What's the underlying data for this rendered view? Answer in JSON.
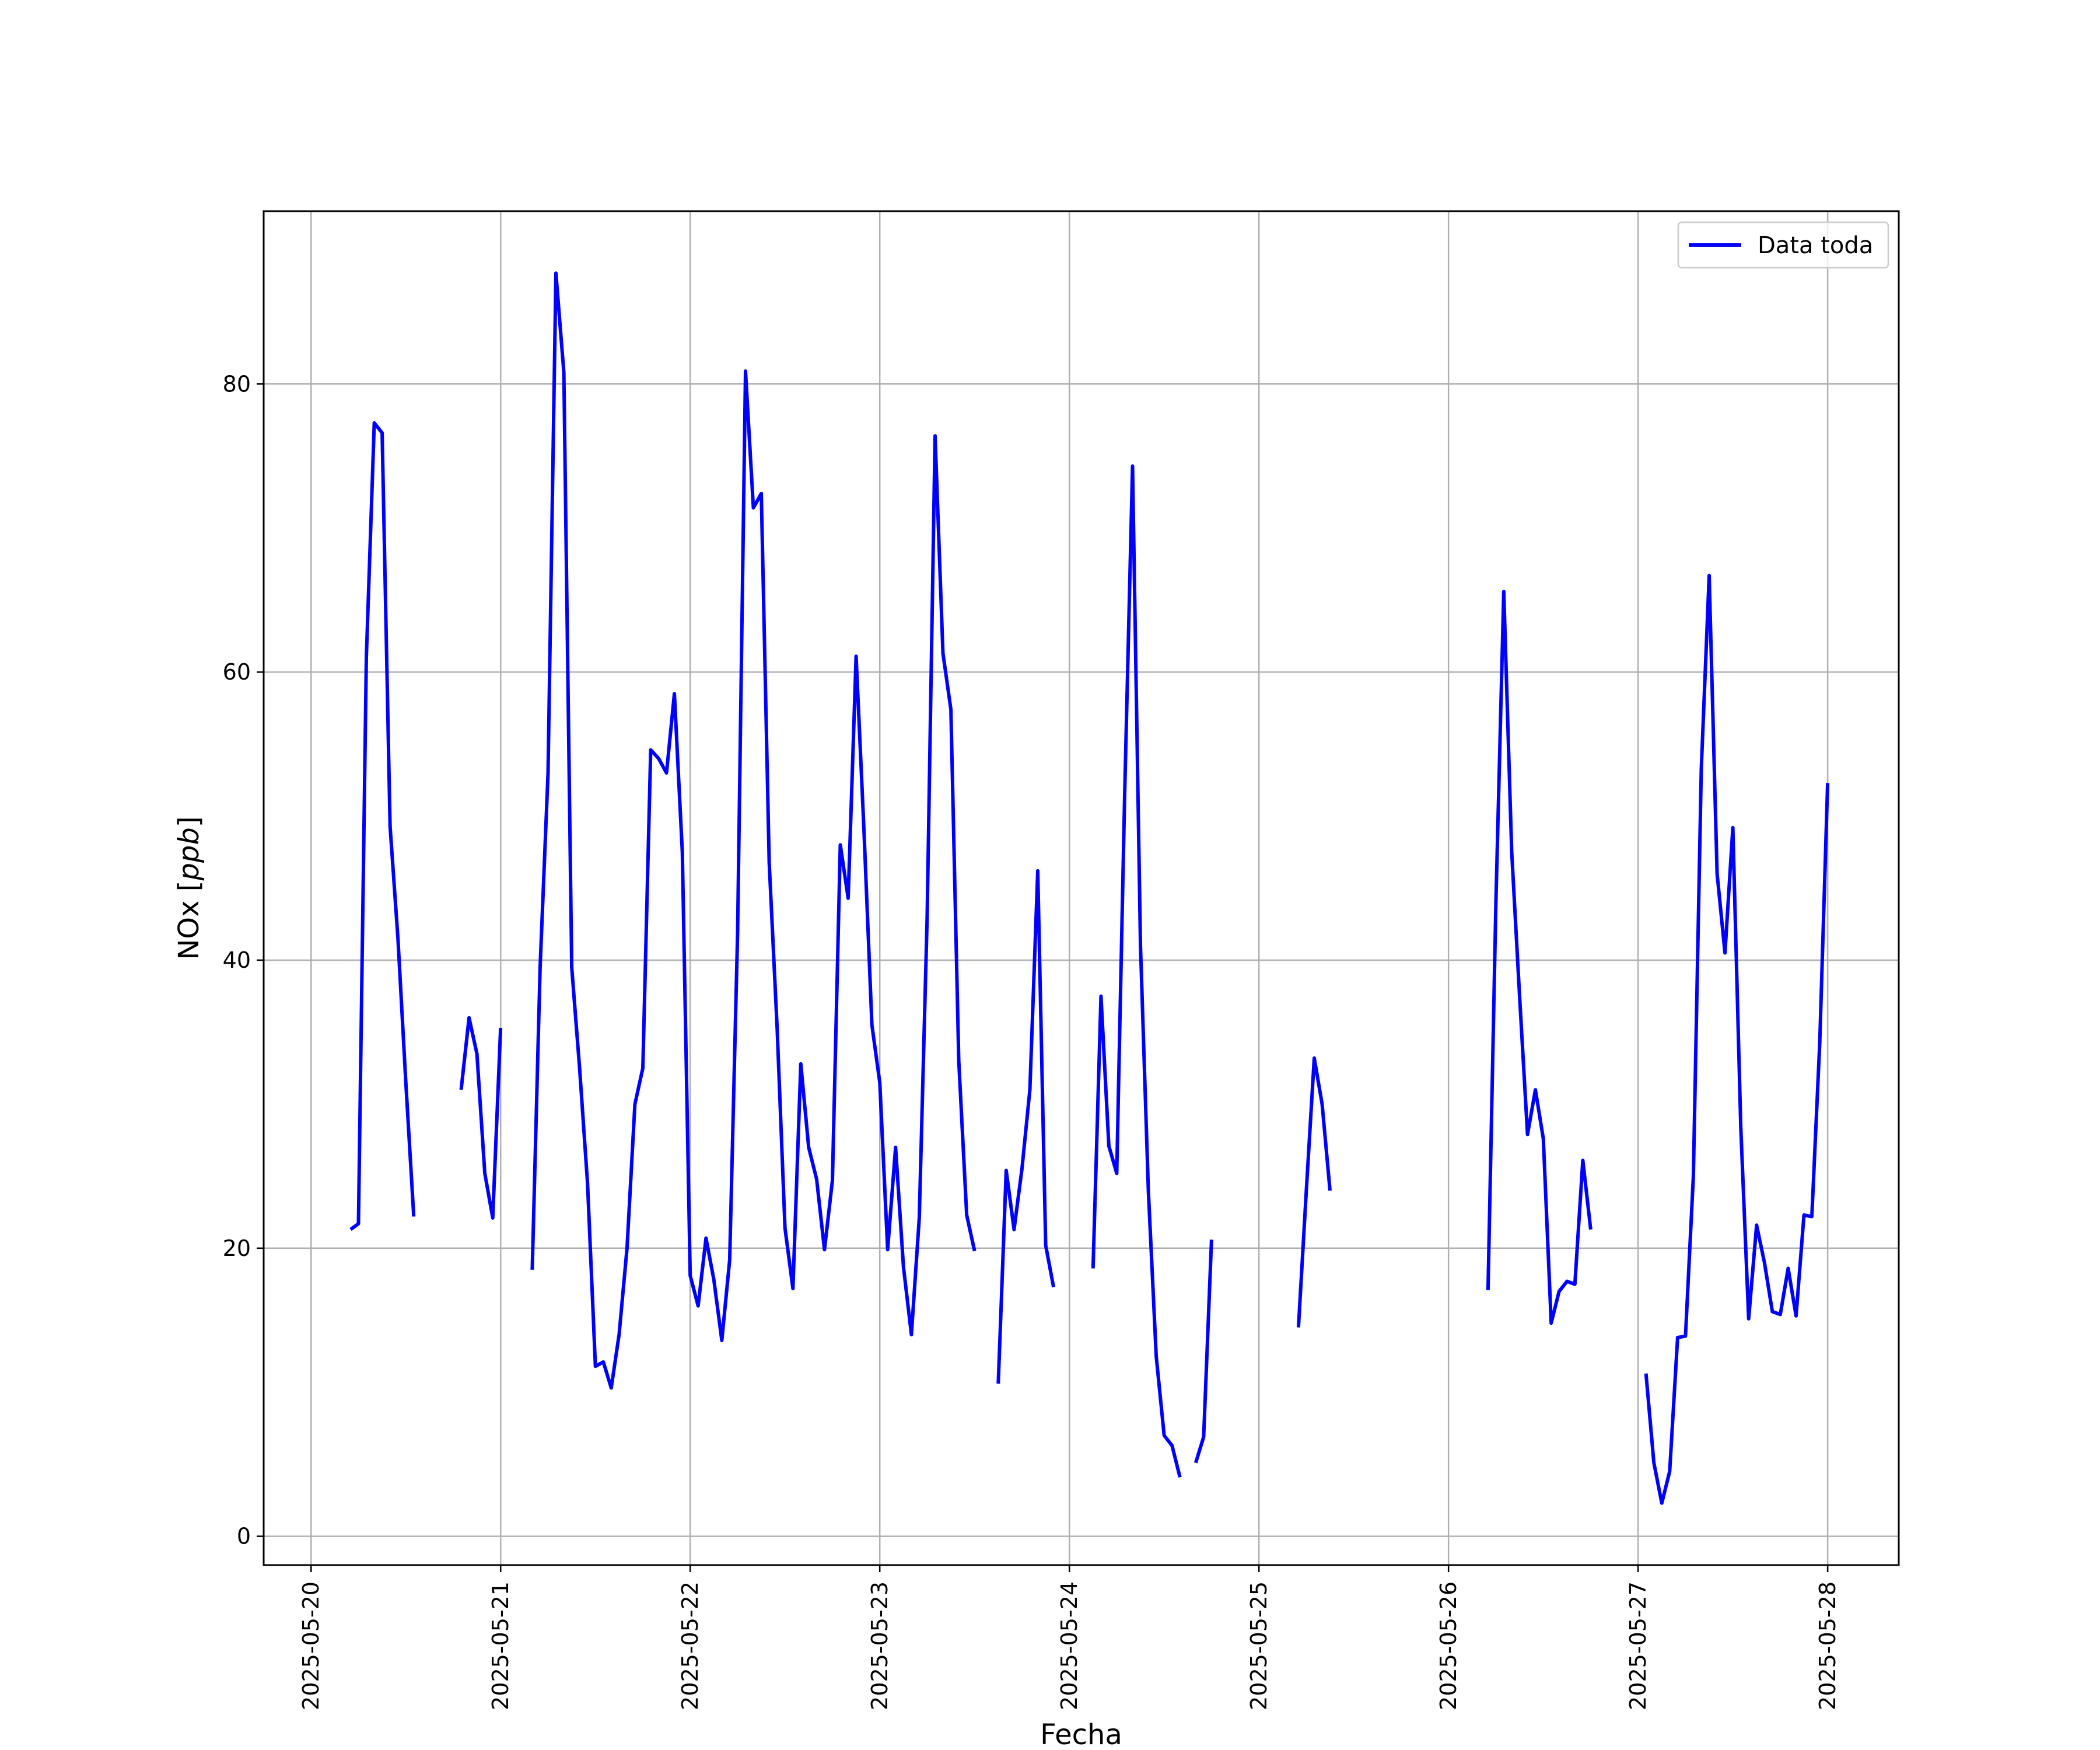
{
  "chart_data": {
    "type": "line",
    "xlabel": "Fecha",
    "ylabel_prefix": "NOx [",
    "ylabel_unit": "ppb",
    "ylabel_suffix": "]",
    "grid": true,
    "legend_position": "top-right",
    "x_range": [
      "2025-05-19T18:00",
      "2025-05-28T09:00"
    ],
    "ylim": [
      -2,
      92
    ],
    "x_ticks": [
      "2025-05-20",
      "2025-05-21",
      "2025-05-22",
      "2025-05-23",
      "2025-05-24",
      "2025-05-25",
      "2025-05-26",
      "2025-05-27",
      "2025-05-28"
    ],
    "y_ticks": [
      0,
      20,
      40,
      60,
      80
    ],
    "series": [
      {
        "name": "Data toda",
        "color": "#0000ff",
        "segments": [
          [
            [
              "2025-05-20T05:00",
              21.3
            ],
            [
              "2025-05-20T06:00",
              21.7
            ],
            [
              "2025-05-20T07:00",
              61.0
            ],
            [
              "2025-05-20T08:00",
              77.3
            ],
            [
              "2025-05-20T09:00",
              76.6
            ],
            [
              "2025-05-20T10:00",
              49.3
            ],
            [
              "2025-05-20T11:00",
              41.5
            ],
            [
              "2025-05-20T12:00",
              31.5
            ],
            [
              "2025-05-20T13:00",
              22.2
            ]
          ],
          [
            [
              "2025-05-20T19:00",
              31.0
            ],
            [
              "2025-05-20T20:00",
              36.0
            ],
            [
              "2025-05-20T21:00",
              33.5
            ],
            [
              "2025-05-20T22:00",
              25.2
            ],
            [
              "2025-05-20T23:00",
              22.1
            ],
            [
              "2025-05-21T00:00",
              35.3
            ]
          ],
          [
            [
              "2025-05-21T04:00",
              18.5
            ],
            [
              "2025-05-21T05:00",
              39.5
            ],
            [
              "2025-05-21T06:00",
              53.0
            ],
            [
              "2025-05-21T07:00",
              87.7
            ],
            [
              "2025-05-21T08:00",
              80.8
            ],
            [
              "2025-05-21T09:00",
              39.5
            ],
            [
              "2025-05-21T10:00",
              32.5
            ],
            [
              "2025-05-21T11:00",
              24.5
            ],
            [
              "2025-05-21T12:00",
              11.8
            ],
            [
              "2025-05-21T13:00",
              12.1
            ],
            [
              "2025-05-21T14:00",
              10.3
            ],
            [
              "2025-05-21T15:00",
              14.0
            ],
            [
              "2025-05-21T16:00",
              20.0
            ],
            [
              "2025-05-21T17:00",
              30.0
            ],
            [
              "2025-05-21T18:00",
              32.5
            ],
            [
              "2025-05-21T19:00",
              54.6
            ],
            [
              "2025-05-21T20:00",
              54.0
            ],
            [
              "2025-05-21T21:00",
              53.0
            ],
            [
              "2025-05-21T22:00",
              58.5
            ],
            [
              "2025-05-21T23:00",
              47.5
            ],
            [
              "2025-05-22T00:00",
              18.1
            ],
            [
              "2025-05-22T01:00",
              16.0
            ],
            [
              "2025-05-22T02:00",
              20.7
            ],
            [
              "2025-05-22T03:00",
              17.8
            ],
            [
              "2025-05-22T04:00",
              13.6
            ],
            [
              "2025-05-22T05:00",
              19.2
            ],
            [
              "2025-05-22T06:00",
              42.0
            ],
            [
              "2025-05-22T07:00",
              80.9
            ],
            [
              "2025-05-22T08:00",
              71.4
            ],
            [
              "2025-05-22T09:00",
              72.4
            ],
            [
              "2025-05-22T10:00",
              46.8
            ],
            [
              "2025-05-22T11:00",
              35.3
            ],
            [
              "2025-05-22T12:00",
              21.4
            ],
            [
              "2025-05-22T13:00",
              17.2
            ],
            [
              "2025-05-22T14:00",
              32.8
            ],
            [
              "2025-05-22T15:00",
              27.0
            ],
            [
              "2025-05-22T16:00",
              24.8
            ],
            [
              "2025-05-22T17:00",
              19.9
            ],
            [
              "2025-05-22T18:00",
              24.7
            ],
            [
              "2025-05-22T19:00",
              48.0
            ],
            [
              "2025-05-22T20:00",
              44.3
            ],
            [
              "2025-05-22T21:00",
              61.1
            ],
            [
              "2025-05-22T22:00",
              49.0
            ],
            [
              "2025-05-22T23:00",
              35.5
            ],
            [
              "2025-05-23T00:00",
              31.5
            ],
            [
              "2025-05-23T01:00",
              19.9
            ],
            [
              "2025-05-23T02:00",
              27.0
            ],
            [
              "2025-05-23T03:00",
              18.7
            ],
            [
              "2025-05-23T04:00",
              14.0
            ],
            [
              "2025-05-23T05:00",
              22.1
            ],
            [
              "2025-05-23T06:00",
              43.0
            ],
            [
              "2025-05-23T07:00",
              76.4
            ],
            [
              "2025-05-23T08:00",
              61.3
            ],
            [
              "2025-05-23T09:00",
              57.4
            ],
            [
              "2025-05-23T10:00",
              33.0
            ],
            [
              "2025-05-23T11:00",
              22.3
            ],
            [
              "2025-05-23T12:00",
              19.8
            ]
          ],
          [
            [
              "2025-05-23T15:00",
              10.6
            ],
            [
              "2025-05-23T16:00",
              25.4
            ],
            [
              "2025-05-23T17:00",
              21.3
            ],
            [
              "2025-05-23T18:00",
              25.5
            ],
            [
              "2025-05-23T19:00",
              31.0
            ],
            [
              "2025-05-23T20:00",
              46.2
            ],
            [
              "2025-05-23T21:00",
              20.2
            ],
            [
              "2025-05-23T22:00",
              17.3
            ]
          ],
          [
            [
              "2025-05-24T03:00",
              18.6
            ],
            [
              "2025-05-24T04:00",
              37.5
            ],
            [
              "2025-05-24T05:00",
              27.1
            ],
            [
              "2025-05-24T06:00",
              25.2
            ],
            [
              "2025-05-24T07:00",
              51.5
            ],
            [
              "2025-05-24T08:00",
              74.3
            ],
            [
              "2025-05-24T09:00",
              41.0
            ],
            [
              "2025-05-24T10:00",
              24.0
            ],
            [
              "2025-05-24T11:00",
              12.5
            ],
            [
              "2025-05-24T12:00",
              7.0
            ],
            [
              "2025-05-24T13:00",
              6.3
            ],
            [
              "2025-05-24T14:00",
              4.1
            ]
          ],
          [
            [
              "2025-05-24T16:00",
              5.1
            ],
            [
              "2025-05-24T17:00",
              6.9
            ],
            [
              "2025-05-24T18:00",
              20.6
            ]
          ],
          [
            [
              "2025-05-25T05:00",
              14.5
            ],
            [
              "2025-05-25T06:00",
              24.0
            ],
            [
              "2025-05-25T07:00",
              33.2
            ],
            [
              "2025-05-25T08:00",
              30.0
            ],
            [
              "2025-05-25T09:00",
              24.0
            ]
          ],
          [
            [
              "2025-05-26T05:00",
              17.1
            ],
            [
              "2025-05-26T06:00",
              44.0
            ],
            [
              "2025-05-26T07:00",
              65.6
            ],
            [
              "2025-05-26T08:00",
              47.5
            ],
            [
              "2025-05-26T09:00",
              37.5
            ],
            [
              "2025-05-26T10:00",
              27.9
            ],
            [
              "2025-05-26T11:00",
              31.0
            ],
            [
              "2025-05-26T12:00",
              27.6
            ],
            [
              "2025-05-26T13:00",
              14.8
            ],
            [
              "2025-05-26T14:00",
              17.0
            ],
            [
              "2025-05-26T15:00",
              17.7
            ],
            [
              "2025-05-26T16:00",
              17.5
            ],
            [
              "2025-05-26T17:00",
              26.1
            ],
            [
              "2025-05-26T18:00",
              21.3
            ]
          ],
          [
            [
              "2025-05-27T01:00",
              11.3
            ],
            [
              "2025-05-27T02:00",
              5.1
            ],
            [
              "2025-05-27T03:00",
              2.3
            ],
            [
              "2025-05-27T04:00",
              4.5
            ],
            [
              "2025-05-27T05:00",
              13.8
            ],
            [
              "2025-05-27T06:00",
              13.9
            ],
            [
              "2025-05-27T07:00",
              25.0
            ],
            [
              "2025-05-27T08:00",
              53.3
            ],
            [
              "2025-05-27T09:00",
              66.7
            ],
            [
              "2025-05-27T10:00",
              46.0
            ],
            [
              "2025-05-27T11:00",
              40.5
            ],
            [
              "2025-05-27T12:00",
              49.2
            ],
            [
              "2025-05-27T13:00",
              28.4
            ],
            [
              "2025-05-27T14:00",
              15.1
            ],
            [
              "2025-05-27T15:00",
              21.6
            ],
            [
              "2025-05-27T16:00",
              19.0
            ],
            [
              "2025-05-27T17:00",
              15.6
            ],
            [
              "2025-05-27T18:00",
              15.4
            ],
            [
              "2025-05-27T19:00",
              18.6
            ],
            [
              "2025-05-27T20:00",
              15.3
            ],
            [
              "2025-05-27T21:00",
              22.3
            ],
            [
              "2025-05-27T22:00",
              22.2
            ],
            [
              "2025-05-27T23:00",
              34.3
            ],
            [
              "2025-05-28T00:00",
              52.3
            ]
          ]
        ]
      }
    ]
  }
}
